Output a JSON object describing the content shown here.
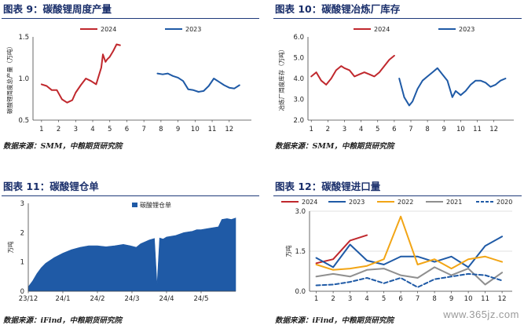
{
  "panels": [
    {
      "title": "图表 9：碳酸锂周度产量",
      "source": "数据来源：SMM，中粮期货研究院",
      "chart_data": {
        "type": "line",
        "ylabel": "碳酸锂周度总产量（万吨）",
        "ylim": [
          0.5,
          1.5
        ],
        "yticks": [
          0.5,
          1.0,
          1.5
        ],
        "ytick_labels": [
          "0.5",
          "1.0",
          "1.5"
        ],
        "xlim": [
          0.5,
          13.3
        ],
        "xticks": [
          1,
          2,
          3,
          4,
          5,
          6,
          7,
          8,
          9,
          10,
          11,
          12
        ],
        "grid": false,
        "legend": "top-center",
        "series": [
          {
            "name": "2024",
            "color": "#c0282d",
            "dash": false,
            "x": [
              1.0,
              1.3,
              1.6,
              1.9,
              2.2,
              2.5,
              2.8,
              3.0,
              3.3,
              3.6,
              3.9,
              4.2,
              4.5,
              4.6,
              4.75,
              4.85,
              5.0,
              5.2,
              5.4,
              5.6
            ],
            "y": [
              0.93,
              0.91,
              0.86,
              0.86,
              0.75,
              0.71,
              0.74,
              0.83,
              0.92,
              1.0,
              0.97,
              0.93,
              1.13,
              1.29,
              1.2,
              1.23,
              1.26,
              1.33,
              1.41,
              1.4
            ]
          },
          {
            "name": "2023",
            "color": "#1f5aa6",
            "dash": false,
            "x": [
              7.8,
              8.1,
              8.4,
              8.7,
              9.0,
              9.3,
              9.6,
              9.9,
              10.2,
              10.5,
              10.8,
              11.1,
              11.4,
              11.7,
              12.0,
              12.3,
              12.6
            ],
            "y": [
              1.06,
              1.05,
              1.06,
              1.03,
              1.01,
              0.97,
              0.87,
              0.86,
              0.84,
              0.85,
              0.91,
              1.0,
              0.96,
              0.92,
              0.89,
              0.88,
              0.92
            ]
          }
        ]
      }
    },
    {
      "title": "图表 10：碳酸锂冶炼厂库存",
      "source": "数据来源：SMM，中粮期货研究院",
      "chart_data": {
        "type": "line",
        "ylabel": "冶炼厂周度库存（万吨）",
        "ylim": [
          2.0,
          6.0
        ],
        "yticks": [
          2.0,
          3.0,
          4.0,
          5.0,
          6.0
        ],
        "ytick_labels": [
          "2.0",
          "3.0",
          "4.0",
          "5.0",
          "6.0"
        ],
        "xlim": [
          0.8,
          13.2
        ],
        "xticks": [
          1,
          2,
          3,
          4,
          5,
          6,
          7,
          8,
          9,
          10,
          11,
          12
        ],
        "grid": false,
        "legend": "top-center",
        "series": [
          {
            "name": "2024",
            "color": "#c0282d",
            "dash": false,
            "x": [
              1.0,
              1.3,
              1.6,
              1.9,
              2.2,
              2.5,
              2.8,
              3.0,
              3.3,
              3.6,
              3.9,
              4.2,
              4.5,
              4.8,
              5.1,
              5.4,
              5.7,
              6.0
            ],
            "y": [
              4.1,
              4.3,
              3.9,
              3.7,
              4.0,
              4.4,
              4.6,
              4.5,
              4.4,
              4.1,
              4.2,
              4.3,
              4.2,
              4.1,
              4.3,
              4.6,
              4.9,
              5.1
            ]
          },
          {
            "name": "2023",
            "color": "#1f5aa6",
            "dash": false,
            "x": [
              6.3,
              6.6,
              6.9,
              7.1,
              7.4,
              7.7,
              8.0,
              8.3,
              8.6,
              8.9,
              9.2,
              9.5,
              9.7,
              10.0,
              10.3,
              10.6,
              10.9,
              11.2,
              11.5,
              11.8,
              12.1,
              12.4,
              12.7
            ],
            "y": [
              4.0,
              3.1,
              2.7,
              2.9,
              3.5,
              3.9,
              4.1,
              4.3,
              4.5,
              4.2,
              3.9,
              3.1,
              3.4,
              3.2,
              3.4,
              3.7,
              3.9,
              3.9,
              3.8,
              3.6,
              3.7,
              3.9,
              4.0
            ]
          }
        ]
      }
    },
    {
      "title": "图表 11：碳酸锂仓单",
      "source": "数据来源：iFind，中粮期货研究院",
      "chart_data": {
        "type": "area",
        "ylabel": "万吨",
        "ylim": [
          0,
          3
        ],
        "yticks": [
          0,
          1,
          2,
          3
        ],
        "ytick_labels": [
          "0",
          "1",
          "2",
          "3"
        ],
        "xlim": [
          0,
          24
        ],
        "xticks": [
          0,
          4,
          8,
          12,
          16,
          20
        ],
        "xtick_labels": [
          "23/12",
          "24/1",
          "24/2",
          "24/3",
          "24/4",
          "24/5"
        ],
        "grid": false,
        "legend": "top-center",
        "series": [
          {
            "name": "碳酸锂仓单",
            "color": "#1f5aa6",
            "x": [
              0,
              0.5,
              1,
              1.5,
              2,
              3,
              4,
              5,
              6,
              7,
              8,
              9,
              10,
              11,
              11.8,
              12.5,
              13,
              14,
              14.6,
              14.9,
              15.2,
              15.6,
              16,
              17,
              18,
              19,
              19.5,
              20,
              21,
              22,
              22.4,
              23,
              23.5,
              24
            ],
            "y": [
              0.15,
              0.35,
              0.6,
              0.8,
              0.95,
              1.15,
              1.3,
              1.42,
              1.5,
              1.55,
              1.55,
              1.52,
              1.55,
              1.6,
              1.55,
              1.5,
              1.62,
              1.75,
              1.8,
              0.2,
              1.82,
              1.78,
              1.85,
              1.9,
              2.0,
              2.05,
              2.1,
              2.1,
              2.15,
              2.2,
              2.45,
              2.48,
              2.45,
              2.5
            ]
          }
        ]
      }
    },
    {
      "title": "图表 12：碳酸锂进口量",
      "source": "数据来源：iFind，中粮期货研究院",
      "chart_data": {
        "type": "line",
        "ylabel": "万吨",
        "ylim": [
          0,
          3
        ],
        "yticks": [
          0,
          1.5,
          3.0
        ],
        "ytick_labels": [
          "0.0",
          "1.5",
          "3.0"
        ],
        "xlim": [
          0.6,
          12.6
        ],
        "xticks": [
          1,
          2,
          3,
          4,
          5,
          6,
          7,
          8,
          9,
          10,
          11,
          12
        ],
        "grid": true,
        "legend": "top",
        "series": [
          {
            "name": "2024",
            "color": "#c0282d",
            "dash": false,
            "x": [
              1,
              2,
              3,
              4
            ],
            "y": [
              1.05,
              1.2,
              1.9,
              2.1
            ]
          },
          {
            "name": "2023",
            "color": "#1f5aa6",
            "dash": false,
            "x": [
              1,
              2,
              3,
              4,
              5,
              6,
              7,
              8,
              9,
              10,
              11,
              12
            ],
            "y": [
              1.25,
              0.9,
              1.75,
              1.15,
              1.0,
              1.3,
              1.3,
              1.1,
              1.3,
              0.9,
              1.7,
              2.05
            ]
          },
          {
            "name": "2022",
            "color": "#f2a515",
            "dash": false,
            "x": [
              1,
              2,
              3,
              4,
              5,
              6,
              7,
              8,
              9,
              10,
              11,
              12
            ],
            "y": [
              1.0,
              0.8,
              0.85,
              0.95,
              1.2,
              2.8,
              1.0,
              1.2,
              0.85,
              1.2,
              1.3,
              1.1
            ]
          },
          {
            "name": "2021",
            "color": "#8f8f8f",
            "dash": false,
            "x": [
              1,
              2,
              3,
              4,
              5,
              6,
              7,
              8,
              9,
              10,
              11,
              12
            ],
            "y": [
              0.55,
              0.65,
              0.55,
              0.8,
              0.85,
              0.6,
              0.5,
              0.9,
              0.6,
              0.85,
              0.25,
              0.7
            ]
          },
          {
            "name": "2020",
            "color": "#1f5aa6",
            "dash": true,
            "x": [
              1,
              2,
              3,
              4,
              5,
              6,
              7,
              8,
              9,
              10,
              11,
              12
            ],
            "y": [
              0.22,
              0.25,
              0.35,
              0.5,
              0.3,
              0.5,
              0.15,
              0.45,
              0.55,
              0.65,
              0.6,
              0.4
            ]
          }
        ]
      }
    }
  ],
  "watermark": "www.365jz.com"
}
